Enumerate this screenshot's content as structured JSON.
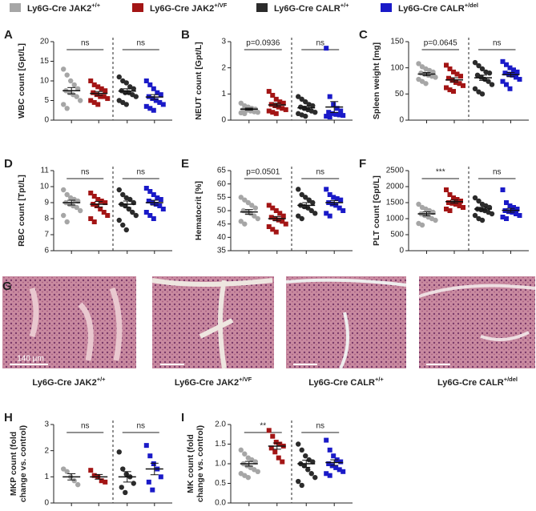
{
  "legend": [
    {
      "name": "Ly6G-Cre JAK2",
      "sup": "+/+",
      "color": "#a6a6a6"
    },
    {
      "name": "Ly6G-Cre JAK2",
      "sup": "+/VF",
      "color": "#a31515"
    },
    {
      "name": "Ly6G-Cre CALR",
      "sup": "+/+",
      "color": "#2b2b2b"
    },
    {
      "name": "Ly6G-Cre CALR",
      "sup": "+/del",
      "color": "#1a1ac8"
    }
  ],
  "histology": {
    "panel": "G",
    "scale_bar": "140 µm",
    "labels": [
      {
        "name": "Ly6G-Cre JAK2",
        "sup": "+/+"
      },
      {
        "name": "Ly6G-Cre JAK2",
        "sup": "+/VF"
      },
      {
        "name": "Ly6G-Cre CALR",
        "sup": "+/+"
      },
      {
        "name": "Ly6G-Cre CALR",
        "sup": "+/del"
      }
    ]
  },
  "chart_data": [
    {
      "type": "dotplot",
      "panel": "A",
      "ylabel": [
        "WBC count [Gpt/L]"
      ],
      "ylim": [
        0,
        20
      ],
      "yticks": [
        0,
        5,
        10,
        15,
        20
      ],
      "annotations": [
        "ns",
        "ns"
      ],
      "series": [
        {
          "color": "#a6a6a6",
          "marker": "circle",
          "values": [
            13,
            11.5,
            10,
            9,
            8,
            7.5,
            7,
            6.5,
            6,
            5,
            4,
            3
          ],
          "mean": 7.5,
          "sem": 0.8
        },
        {
          "color": "#a31515",
          "marker": "square",
          "values": [
            10,
            9,
            8.5,
            8,
            7.5,
            7,
            6.5,
            6,
            6,
            5.5,
            5,
            4.5,
            4
          ],
          "mean": 6.8,
          "sem": 0.5
        },
        {
          "color": "#2b2b2b",
          "marker": "circle",
          "values": [
            11,
            10,
            9.5,
            8.5,
            8,
            7.5,
            7,
            7,
            6.5,
            6,
            5,
            4.5,
            4
          ],
          "mean": 7.4,
          "sem": 0.6
        },
        {
          "color": "#1a1ac8",
          "marker": "square",
          "values": [
            10,
            9,
            8,
            7,
            6.5,
            6,
            5.5,
            5,
            4.5,
            4,
            3.5,
            3,
            2.5
          ],
          "mean": 5.9,
          "sem": 0.6
        }
      ]
    },
    {
      "type": "dotplot",
      "panel": "B",
      "ylabel": [
        "NEUT count [Gpt/L]"
      ],
      "ylim": [
        0,
        3
      ],
      "yticks": [
        0,
        1,
        2,
        3
      ],
      "annotations": [
        "p=0.0936",
        "ns"
      ],
      "series": [
        {
          "color": "#a6a6a6",
          "marker": "circle",
          "values": [
            0.65,
            0.55,
            0.5,
            0.45,
            0.42,
            0.4,
            0.38,
            0.35,
            0.32,
            0.3,
            0.28,
            0.25
          ],
          "mean": 0.42,
          "sem": 0.04
        },
        {
          "color": "#a31515",
          "marker": "square",
          "values": [
            1.1,
            0.95,
            0.8,
            0.7,
            0.65,
            0.6,
            0.55,
            0.5,
            0.45,
            0.4,
            0.35,
            0.3,
            0.25
          ],
          "mean": 0.58,
          "sem": 0.07
        },
        {
          "color": "#2b2b2b",
          "marker": "circle",
          "values": [
            0.9,
            0.8,
            0.7,
            0.6,
            0.55,
            0.5,
            0.45,
            0.4,
            0.35,
            0.3,
            0.25,
            0.2,
            0.15
          ],
          "mean": 0.47,
          "sem": 0.06
        },
        {
          "color": "#1a1ac8",
          "marker": "square",
          "values": [
            2.75,
            0.9,
            0.6,
            0.45,
            0.35,
            0.3,
            0.25,
            0.22,
            0.2,
            0.18,
            0.15,
            0.12
          ],
          "mean": 0.5,
          "sem": 0.21
        }
      ]
    },
    {
      "type": "dotplot",
      "panel": "C",
      "ylabel": [
        "Spleen weight [mg]"
      ],
      "ylim": [
        0,
        150
      ],
      "yticks": [
        0,
        50,
        100,
        150
      ],
      "annotations": [
        "p=0.0645",
        "ns"
      ],
      "series": [
        {
          "color": "#a6a6a6",
          "marker": "circle",
          "values": [
            108,
            102,
            98,
            95,
            92,
            90,
            88,
            86,
            84,
            82,
            78,
            74,
            70
          ],
          "mean": 88,
          "sem": 3
        },
        {
          "color": "#a31515",
          "marker": "square",
          "values": [
            105,
            98,
            92,
            88,
            84,
            80,
            76,
            72,
            70,
            66,
            62,
            58,
            55
          ],
          "mean": 77,
          "sem": 4
        },
        {
          "color": "#2b2b2b",
          "marker": "circle",
          "values": [
            110,
            104,
            98,
            92,
            90,
            86,
            82,
            78,
            74,
            68,
            60,
            54,
            50
          ],
          "mean": 81,
          "sem": 5
        },
        {
          "color": "#1a1ac8",
          "marker": "square",
          "values": [
            112,
            106,
            100,
            96,
            92,
            90,
            88,
            86,
            82,
            78,
            74,
            68,
            60
          ],
          "mean": 87,
          "sem": 4
        }
      ]
    },
    {
      "type": "dotplot",
      "panel": "D",
      "ylabel": [
        "RBC count [Tpt/L]"
      ],
      "ylim": [
        6,
        11
      ],
      "yticks": [
        6,
        7,
        8,
        9,
        10,
        11
      ],
      "annotations": [
        "ns",
        "ns"
      ],
      "series": [
        {
          "color": "#a6a6a6",
          "marker": "circle",
          "values": [
            9.8,
            9.5,
            9.3,
            9.2,
            9.1,
            9.0,
            8.9,
            8.8,
            8.7,
            8.5,
            8.2,
            7.8
          ],
          "mean": 9.0,
          "sem": 0.15
        },
        {
          "color": "#a31515",
          "marker": "square",
          "values": [
            9.6,
            9.4,
            9.2,
            9.1,
            9.0,
            8.9,
            8.8,
            8.6,
            8.4,
            8.2,
            8.0,
            7.8
          ],
          "mean": 8.9,
          "sem": 0.17
        },
        {
          "color": "#2b2b2b",
          "marker": "circle",
          "values": [
            9.8,
            9.5,
            9.3,
            9.2,
            9.0,
            8.9,
            8.8,
            8.6,
            8.4,
            8.2,
            7.9,
            7.6,
            7.3
          ],
          "mean": 8.9,
          "sem": 0.2
        },
        {
          "color": "#1a1ac8",
          "marker": "square",
          "values": [
            9.9,
            9.7,
            9.5,
            9.3,
            9.2,
            9.1,
            9.0,
            8.9,
            8.8,
            8.6,
            8.4,
            8.2,
            8.0
          ],
          "mean": 9.0,
          "sem": 0.15
        }
      ]
    },
    {
      "type": "dotplot",
      "panel": "E",
      "ylabel": [
        "Hematocrit [%]"
      ],
      "ylim": [
        35,
        65
      ],
      "yticks": [
        35,
        40,
        45,
        50,
        55,
        60,
        65
      ],
      "annotations": [
        "p=0.0501",
        "ns"
      ],
      "series": [
        {
          "color": "#a6a6a6",
          "marker": "circle",
          "values": [
            55,
            54,
            53,
            52,
            51,
            50,
            49.5,
            49,
            48,
            47,
            46,
            45
          ],
          "mean": 49.5,
          "sem": 0.9
        },
        {
          "color": "#a31515",
          "marker": "square",
          "values": [
            52,
            51,
            50,
            49,
            48,
            47.5,
            47,
            46.5,
            46,
            45,
            44,
            43,
            42
          ],
          "mean": 47,
          "sem": 0.8
        },
        {
          "color": "#2b2b2b",
          "marker": "circle",
          "values": [
            58,
            56,
            55,
            54,
            53,
            52,
            51.5,
            51,
            50,
            49,
            48,
            47
          ],
          "mean": 52,
          "sem": 1.0
        },
        {
          "color": "#1a1ac8",
          "marker": "square",
          "values": [
            58,
            56,
            55,
            54.5,
            54,
            53,
            52.5,
            52,
            51,
            50,
            49,
            48
          ],
          "mean": 53,
          "sem": 0.8
        }
      ]
    },
    {
      "type": "dotplot",
      "panel": "F",
      "ylabel": [
        "PLT count [Gpt/L]"
      ],
      "ylim": [
        0,
        2500
      ],
      "yticks": [
        0,
        500,
        1000,
        1500,
        2000,
        2500
      ],
      "annotations": [
        "***",
        "ns"
      ],
      "series": [
        {
          "color": "#a6a6a6",
          "marker": "circle",
          "values": [
            1450,
            1350,
            1300,
            1250,
            1200,
            1150,
            1100,
            1050,
            1000,
            950,
            850,
            800
          ],
          "mean": 1150,
          "sem": 60
        },
        {
          "color": "#a31515",
          "marker": "square",
          "values": [
            1900,
            1750,
            1650,
            1600,
            1550,
            1500,
            1480,
            1450,
            1400,
            1350,
            1300,
            1250
          ],
          "mean": 1530,
          "sem": 50
        },
        {
          "color": "#2b2b2b",
          "marker": "circle",
          "values": [
            1650,
            1550,
            1450,
            1400,
            1350,
            1300,
            1280,
            1250,
            1200,
            1150,
            1100,
            1000,
            950
          ],
          "mean": 1300,
          "sem": 55
        },
        {
          "color": "#1a1ac8",
          "marker": "square",
          "values": [
            1900,
            1500,
            1400,
            1350,
            1300,
            1250,
            1220,
            1200,
            1150,
            1100,
            1050,
            1000
          ],
          "mean": 1260,
          "sem": 60
        }
      ]
    },
    {
      "type": "dotplot",
      "panel": "H",
      "ylabel": [
        "MKP count (fold",
        "change vs. control)"
      ],
      "ylim": [
        0,
        3
      ],
      "yticks": [
        0,
        1,
        2,
        3
      ],
      "annotations": [
        "ns",
        "ns"
      ],
      "series": [
        {
          "color": "#a6a6a6",
          "marker": "circle",
          "values": [
            1.3,
            1.2,
            1.0,
            0.85,
            0.7
          ],
          "mean": 1.0,
          "sem": 0.12
        },
        {
          "color": "#a31515",
          "marker": "square",
          "values": [
            1.25,
            1.05,
            1.0,
            0.85,
            0.8
          ],
          "mean": 1.0,
          "sem": 0.09
        },
        {
          "color": "#2b2b2b",
          "marker": "circle",
          "values": [
            1.95,
            1.3,
            1.1,
            1.0,
            0.75,
            0.6,
            0.4
          ],
          "mean": 1.0,
          "sem": 0.2
        },
        {
          "color": "#1a1ac8",
          "marker": "square",
          "values": [
            2.2,
            1.8,
            1.5,
            1.3,
            1.0,
            0.8,
            0.5
          ],
          "mean": 1.3,
          "sem": 0.22
        }
      ]
    },
    {
      "type": "dotplot",
      "panel": "I",
      "ylabel": [
        "MK count (fold",
        "change vs. control)"
      ],
      "ylim": [
        0,
        2.0
      ],
      "yticks": [
        {
          "value": 0,
          "label": "0.0"
        },
        {
          "value": 0.5,
          "label": "0.5"
        },
        {
          "value": 1.0,
          "label": "1.0"
        },
        {
          "value": 1.5,
          "label": "1.5"
        },
        {
          "value": 2.0,
          "label": "2.0"
        }
      ],
      "annotations": [
        "**",
        "ns"
      ],
      "series": [
        {
          "color": "#a6a6a6",
          "marker": "circle",
          "values": [
            1.35,
            1.25,
            1.15,
            1.1,
            1.05,
            1.0,
            0.95,
            0.9,
            0.85,
            0.8,
            0.75,
            0.7,
            0.65
          ],
          "mean": 1.0,
          "sem": 0.06
        },
        {
          "color": "#a31515",
          "marker": "square",
          "values": [
            1.85,
            1.7,
            1.55,
            1.5,
            1.45,
            1.4,
            1.3,
            1.15,
            1.05
          ],
          "mean": 1.45,
          "sem": 0.08
        },
        {
          "color": "#2b2b2b",
          "marker": "circle",
          "values": [
            1.5,
            1.35,
            1.2,
            1.1,
            1.05,
            1.0,
            0.95,
            0.85,
            0.75,
            0.65,
            0.55,
            0.45
          ],
          "mean": 1.0,
          "sem": 0.09
        },
        {
          "color": "#1a1ac8",
          "marker": "square",
          "values": [
            1.6,
            1.35,
            1.2,
            1.1,
            1.05,
            1.0,
            0.95,
            0.9,
            0.85,
            0.8,
            0.75,
            0.7
          ],
          "mean": 1.03,
          "sem": 0.07
        }
      ]
    }
  ]
}
